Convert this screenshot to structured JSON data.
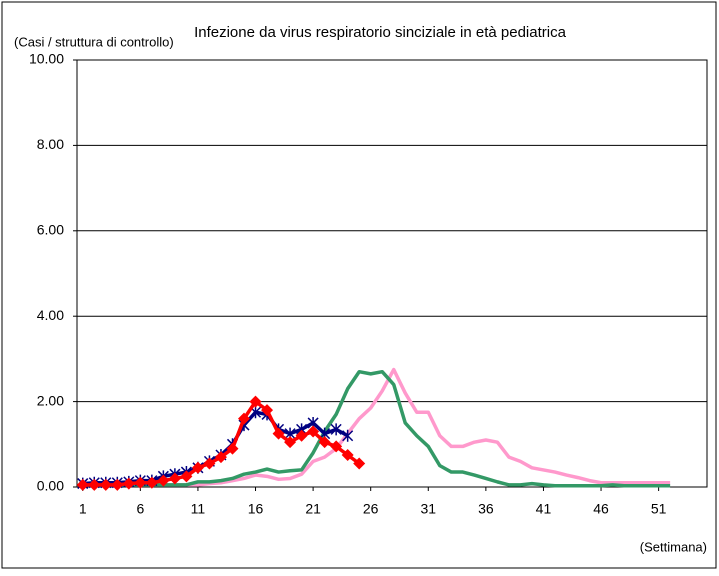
{
  "chart_data": {
    "type": "line",
    "title": "Infezione da virus respiratorio sinciziale  in età pediatrica",
    "y_label": "(Casi / struttura di controllo)",
    "x_label": "(Settimana)",
    "x": [
      1,
      2,
      3,
      4,
      5,
      6,
      7,
      8,
      9,
      10,
      11,
      12,
      13,
      14,
      15,
      16,
      17,
      18,
      19,
      20,
      21,
      22,
      23,
      24,
      25,
      26,
      27,
      28,
      29,
      30,
      31,
      32,
      33,
      34,
      35,
      36,
      37,
      38,
      39,
      40,
      41,
      42,
      43,
      44,
      45,
      46,
      47,
      48,
      49,
      50,
      51,
      52
    ],
    "xlim": [
      0.5,
      55.2
    ],
    "xticks": [
      1,
      6,
      11,
      16,
      21,
      26,
      31,
      36,
      41,
      46,
      51
    ],
    "ylim": [
      0,
      10
    ],
    "yticks": [
      {
        "value": 0,
        "label": "0.00"
      },
      {
        "value": 2,
        "label": "2.00"
      },
      {
        "value": 4,
        "label": "4.00"
      },
      {
        "value": 6,
        "label": "6.00"
      },
      {
        "value": 8,
        "label": "8.00"
      },
      {
        "value": 10,
        "label": "10.00"
      }
    ],
    "grid": true,
    "series": [
      {
        "color": "#ff99cc",
        "marker": "none",
        "values": [
          0.05,
          0.05,
          0.05,
          0.05,
          0.05,
          0.05,
          0.05,
          0.05,
          0.05,
          0.05,
          0.05,
          0.08,
          0.1,
          0.15,
          0.2,
          0.28,
          0.25,
          0.18,
          0.2,
          0.3,
          0.6,
          0.7,
          0.9,
          1.25,
          1.6,
          1.85,
          2.25,
          2.75,
          2.2,
          1.75,
          1.75,
          1.2,
          0.95,
          0.95,
          1.05,
          1.1,
          1.05,
          0.7,
          0.6,
          0.45,
          0.4,
          0.35,
          0.28,
          0.22,
          0.15,
          0.1,
          0.1,
          0.1,
          0.1,
          0.1,
          0.1,
          0.1
        ]
      },
      {
        "color": "#339966",
        "marker": "none",
        "values": [
          0.05,
          0.05,
          0.05,
          0.05,
          0.05,
          0.05,
          0.05,
          0.05,
          0.05,
          0.05,
          0.12,
          0.12,
          0.15,
          0.2,
          0.3,
          0.35,
          0.42,
          0.35,
          0.38,
          0.4,
          0.8,
          1.3,
          1.7,
          2.3,
          2.7,
          2.65,
          2.7,
          2.4,
          1.5,
          1.2,
          0.95,
          0.5,
          0.35,
          0.35,
          0.28,
          0.2,
          0.12,
          0.05,
          0.05,
          0.08,
          0.05,
          0.03,
          0.03,
          0.03,
          0.03,
          0.03,
          0.05,
          0.03,
          0.03,
          0.03,
          0.03,
          0.03
        ]
      },
      {
        "color": "#000080",
        "marker": "star",
        "values": [
          0.08,
          0.1,
          0.1,
          0.1,
          0.12,
          0.15,
          0.15,
          0.25,
          0.3,
          0.35,
          0.45,
          0.6,
          0.75,
          1.0,
          1.45,
          1.75,
          1.7,
          1.35,
          1.25,
          1.35,
          1.5,
          1.25,
          1.35,
          1.2,
          null,
          null,
          null,
          null,
          null,
          null,
          null,
          null,
          null,
          null,
          null,
          null,
          null,
          null,
          null,
          null,
          null,
          null,
          null,
          null,
          null,
          null,
          null,
          null,
          null,
          null,
          null,
          null
        ]
      },
      {
        "color": "#ff0000",
        "marker": "diamond",
        "values": [
          0.05,
          0.05,
          0.05,
          0.05,
          0.08,
          0.1,
          0.1,
          0.15,
          0.2,
          0.25,
          0.45,
          0.55,
          0.7,
          0.9,
          1.6,
          2.0,
          1.8,
          1.25,
          1.05,
          1.2,
          1.3,
          1.05,
          0.95,
          0.75,
          0.55,
          null,
          null,
          null,
          null,
          null,
          null,
          null,
          null,
          null,
          null,
          null,
          null,
          null,
          null,
          null,
          null,
          null,
          null,
          null,
          null,
          null,
          null,
          null,
          null,
          null,
          null,
          null
        ]
      }
    ]
  }
}
